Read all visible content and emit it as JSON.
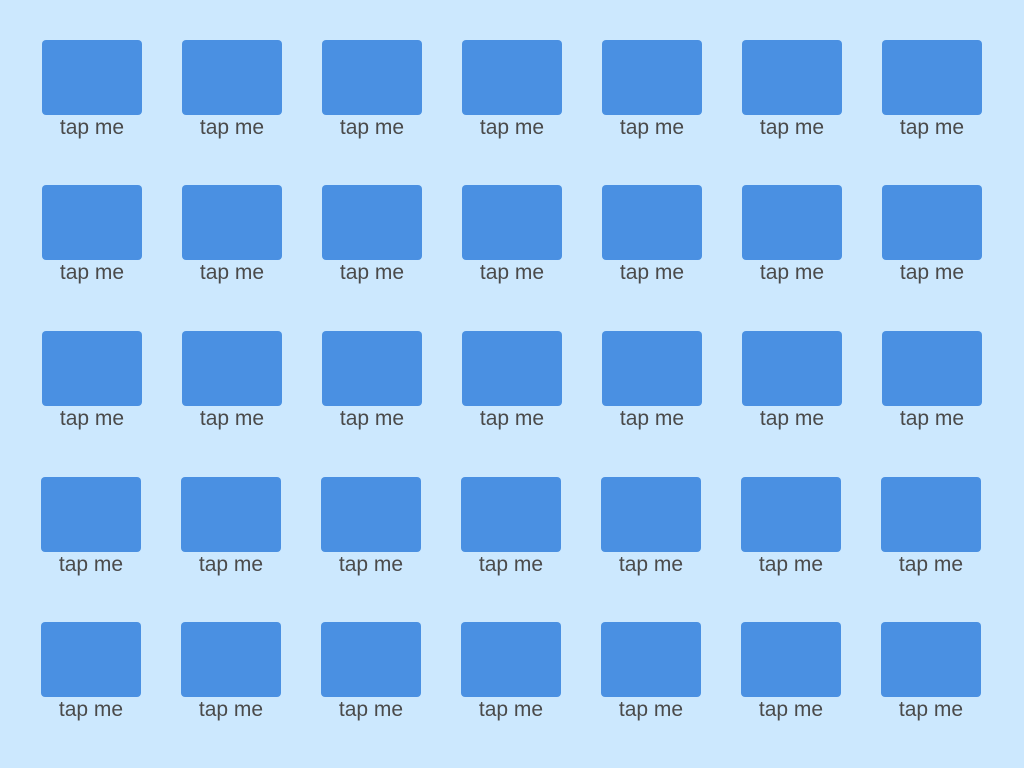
{
  "theme": {
    "background": "#cce8fe",
    "tile_color": "#4a90e2",
    "label_color": "#4a4a4a"
  },
  "grid": {
    "tiles": [
      {
        "label": "tap me"
      },
      {
        "label": "tap me"
      },
      {
        "label": "tap me"
      },
      {
        "label": "tap me"
      },
      {
        "label": "tap me"
      },
      {
        "label": "tap me"
      },
      {
        "label": "tap me"
      },
      {
        "label": "tap me"
      },
      {
        "label": "tap me"
      },
      {
        "label": "tap me"
      },
      {
        "label": "tap me"
      },
      {
        "label": "tap me"
      },
      {
        "label": "tap me"
      },
      {
        "label": "tap me"
      },
      {
        "label": "tap me"
      },
      {
        "label": "tap me"
      },
      {
        "label": "tap me"
      },
      {
        "label": "tap me"
      },
      {
        "label": "tap me"
      },
      {
        "label": "tap me"
      },
      {
        "label": "tap me"
      },
      {
        "label": "tap me"
      },
      {
        "label": "tap me"
      },
      {
        "label": "tap me"
      },
      {
        "label": "tap me"
      },
      {
        "label": "tap me"
      },
      {
        "label": "tap me"
      },
      {
        "label": "tap me"
      },
      {
        "label": "tap me"
      },
      {
        "label": "tap me"
      },
      {
        "label": "tap me"
      },
      {
        "label": "tap me"
      },
      {
        "label": "tap me"
      },
      {
        "label": "tap me"
      },
      {
        "label": "tap me"
      }
    ]
  }
}
